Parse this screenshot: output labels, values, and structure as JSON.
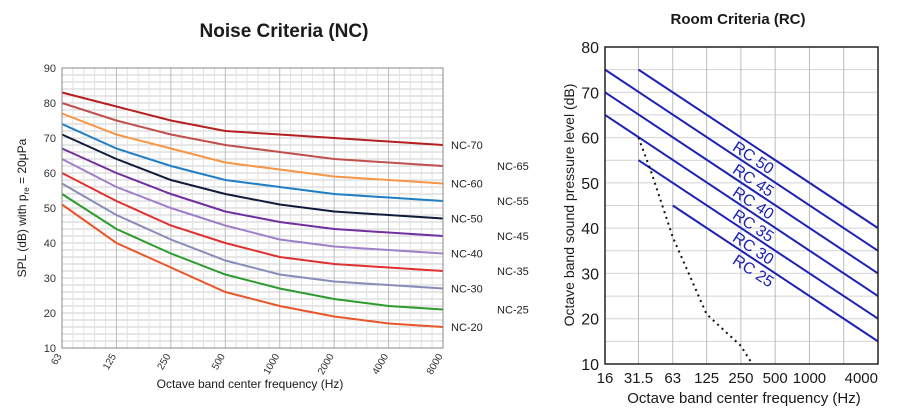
{
  "chart_data": [
    {
      "type": "line",
      "title": "Noise Criteria (NC)",
      "xlabel": "Octave band center frequency (Hz)",
      "ylabel": "SPL (dB) with p",
      "ylabel_sub": "re",
      "ylabel_tail": " = 20μPa",
      "x": [
        "63",
        "125",
        "250",
        "500",
        "1000",
        "2000",
        "4000",
        "8000"
      ],
      "ylim": [
        10,
        90
      ],
      "yticks": [
        "10",
        "20",
        "30",
        "40",
        "50",
        "60",
        "70",
        "80",
        "90"
      ],
      "grid": true,
      "series": [
        {
          "name": "NC-70",
          "color": "#b51f1f",
          "values": [
            83,
            79,
            75,
            72,
            71,
            70,
            69,
            68
          ]
        },
        {
          "name": "NC-65",
          "color": "#c0504d",
          "values": [
            80,
            75,
            71,
            68,
            66,
            64,
            63,
            62
          ]
        },
        {
          "name": "NC-60",
          "color": "#f79646",
          "values": [
            77,
            71,
            67,
            63,
            61,
            59,
            58,
            57
          ]
        },
        {
          "name": "NC-55",
          "color": "#1f7fc4",
          "values": [
            74,
            67,
            62,
            58,
            56,
            54,
            53,
            52
          ]
        },
        {
          "name": "NC-50",
          "color": "#111b3a",
          "values": [
            71,
            64,
            58,
            54,
            51,
            49,
            48,
            47
          ]
        },
        {
          "name": "NC-45",
          "color": "#7030a0",
          "values": [
            67,
            60,
            54,
            49,
            46,
            44,
            43,
            42
          ]
        },
        {
          "name": "NC-40",
          "color": "#9e80c8",
          "values": [
            64,
            56,
            50,
            45,
            41,
            39,
            38,
            37
          ]
        },
        {
          "name": "NC-35",
          "color": "#e03030",
          "values": [
            60,
            52,
            45,
            40,
            36,
            34,
            33,
            32
          ]
        },
        {
          "name": "NC-30",
          "color": "#8a8cb8",
          "values": [
            57,
            48,
            41,
            35,
            31,
            29,
            28,
            27
          ]
        },
        {
          "name": "NC-25",
          "color": "#2e9b2e",
          "values": [
            54,
            44,
            37,
            31,
            27,
            24,
            22,
            21
          ]
        },
        {
          "name": "NC-20",
          "color": "#e8562a",
          "values": [
            51,
            40,
            33,
            26,
            22,
            19,
            17,
            16
          ]
        }
      ]
    },
    {
      "type": "line",
      "title": "Room Criteria (RC)",
      "xlabel": "Octave band center frequency (Hz)",
      "ylabel": "Octave band sound pressure level (dB)",
      "x_ticks": [
        "16",
        "31.5",
        "63",
        "125",
        "250",
        "500",
        "1000",
        "4000"
      ],
      "ylim": [
        10,
        80
      ],
      "yticks": [
        "10",
        "20",
        "30",
        "40",
        "50",
        "60",
        "70",
        "80"
      ],
      "grid": true,
      "line_color": "#1d22b4",
      "series": [
        {
          "name": "RC 50",
          "points": [
            [
              31.5,
              75
            ],
            [
              4000,
              40
            ]
          ]
        },
        {
          "name": "RC 45",
          "points": [
            [
              16,
              75
            ],
            [
              4000,
              35
            ]
          ]
        },
        {
          "name": "RC 40",
          "points": [
            [
              16,
              70
            ],
            [
              4000,
              30
            ]
          ]
        },
        {
          "name": "RC 35",
          "points": [
            [
              16,
              65
            ],
            [
              4000,
              25
            ]
          ]
        },
        {
          "name": "RC 30",
          "points": [
            [
              31.5,
              55
            ],
            [
              4000,
              20
            ]
          ]
        },
        {
          "name": "RC 25",
          "points": [
            [
              63,
              45
            ],
            [
              4000,
              15
            ]
          ]
        }
      ],
      "dotted_curve": [
        [
          31.5,
          60
        ],
        [
          40,
          53
        ],
        [
          63,
          38
        ],
        [
          125,
          21
        ],
        [
          250,
          14
        ],
        [
          315,
          10
        ]
      ]
    }
  ]
}
